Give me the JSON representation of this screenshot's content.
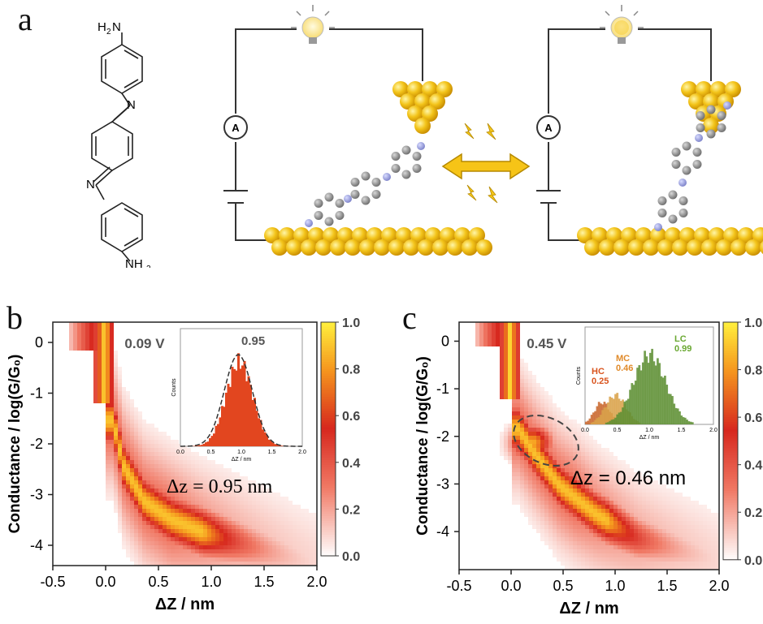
{
  "panel_a": {
    "letter": "a",
    "molecule": {
      "top_group_h": "H",
      "top_group_sub": "2",
      "top_group_n": "N",
      "imine_1": "N",
      "imine_2": "N",
      "bottom_group": "NH",
      "bottom_group_sub": "2"
    },
    "ammeter_symbol": "A"
  },
  "panel_b": {
    "letter": "b",
    "bias_label": "0.09 V",
    "annotation": "Δz = 0.95 nm",
    "inset": {
      "peak_label": "0.95",
      "ylabel": "Counts",
      "xlabel": "ΔZ / nm",
      "xticks": [
        "0.0",
        "0.5",
        "1.0",
        "1.5",
        "2.0"
      ]
    }
  },
  "panel_c": {
    "letter": "c",
    "bias_label": "0.45 V",
    "annotation": "Δz = 0.46 nm",
    "inset": {
      "ylabel": "Counts",
      "xlabel": "ΔZ / nm",
      "xticks": [
        "0.0",
        "0.5",
        "1.0",
        "1.5",
        "2.0"
      ],
      "peaks": [
        {
          "name": "HC",
          "value": "0.25",
          "color": "#d9541e"
        },
        {
          "name": "MC",
          "value": "0.46",
          "color": "#e08a2a"
        },
        {
          "name": "LC",
          "value": "0.99",
          "color": "#6aa832"
        }
      ]
    }
  },
  "axes": {
    "ylabel_b": "Conductance / log(G/G₀)",
    "ylabel_c": "Conductance / log(G/G₀)",
    "xlabel": "ΔZ / nm",
    "xticks": [
      "-0.5",
      "0.0",
      "0.5",
      "1.0",
      "1.5",
      "2.0"
    ],
    "yticks": [
      "0",
      "-1",
      "-2",
      "-3",
      "-4"
    ],
    "colorbar_ticks": [
      "1.0",
      "0.8",
      "0.6",
      "0.4",
      "0.2",
      "0.0"
    ],
    "colorbar_ticks_c": [
      "1.0",
      "0.8",
      "0.6",
      "0.4",
      "0.2",
      "0.0"
    ]
  },
  "chart_data": [
    {
      "type": "heatmap",
      "title": "",
      "xlabel": "ΔZ / nm",
      "ylabel": "Conductance / log(G/G₀)",
      "xlim": [
        -0.5,
        2.0
      ],
      "ylim": [
        -4.4,
        0.4
      ],
      "colorbar_range": [
        0.0,
        1.0
      ],
      "annotations": [
        "0.09 V",
        "Δz = 0.95 nm"
      ],
      "ridge": [
        {
          "x": 0.05,
          "y": -1.5
        },
        {
          "x": 0.15,
          "y": -2.4
        },
        {
          "x": 0.35,
          "y": -3.1
        },
        {
          "x": 0.6,
          "y": -3.45
        },
        {
          "x": 0.9,
          "y": -3.7
        }
      ],
      "inset": {
        "type": "histogram",
        "peak": 0.95,
        "xlim": [
          0.0,
          2.0
        ]
      }
    },
    {
      "type": "heatmap",
      "title": "",
      "xlabel": "ΔZ / nm",
      "ylabel": "Conductance / log(G/G₀)",
      "xlim": [
        -0.5,
        2.0
      ],
      "ylim": [
        -4.8,
        0.4
      ],
      "colorbar_range": [
        0.0,
        1.0
      ],
      "annotations": [
        "0.45 V",
        "Δz = 0.46 nm"
      ],
      "ridge": [
        {
          "x": 0.05,
          "y": -1.8
        },
        {
          "x": 0.2,
          "y": -2.3
        },
        {
          "x": 0.45,
          "y": -3.0
        },
        {
          "x": 0.8,
          "y": -3.6
        },
        {
          "x": 1.2,
          "y": -4.1
        }
      ],
      "inset": {
        "type": "histogram",
        "peaks": [
          0.25,
          0.46,
          0.99
        ],
        "xlim": [
          0.0,
          2.0
        ]
      }
    }
  ]
}
